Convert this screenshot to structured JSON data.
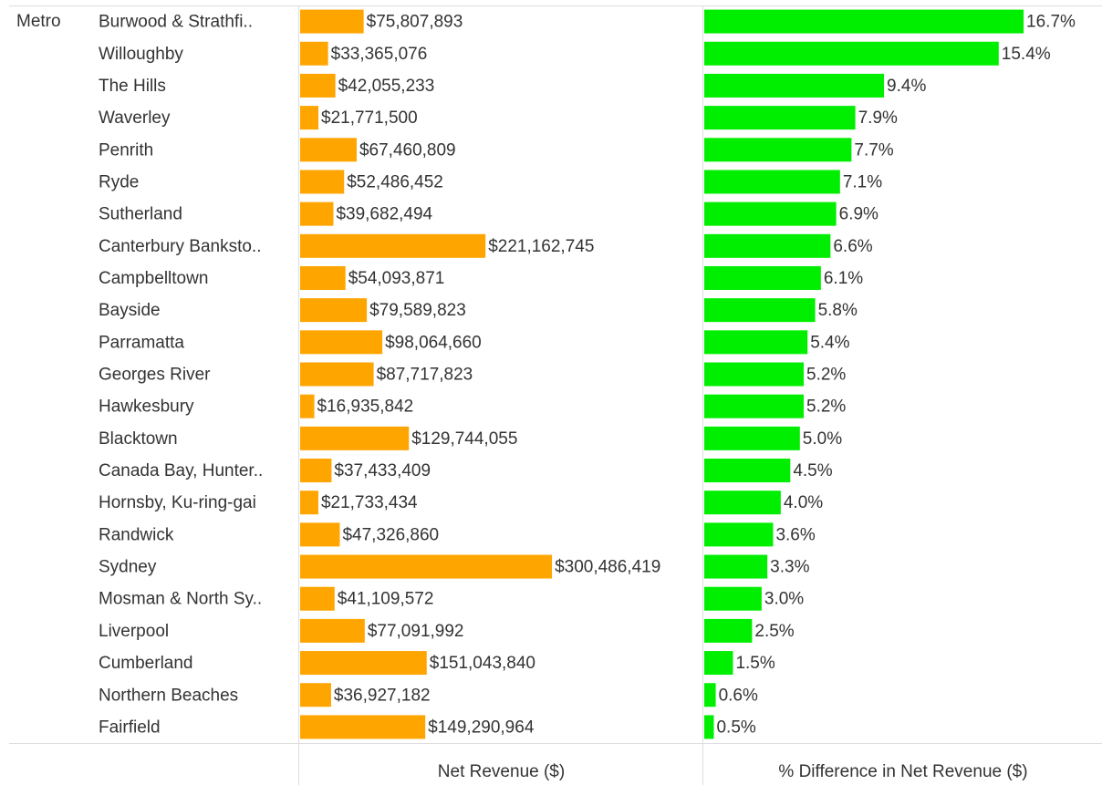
{
  "chart_data": {
    "type": "bar",
    "row_group": "Metro",
    "categories": [
      "Burwood & Strathfi..",
      "Willoughby",
      "The Hills",
      "Waverley",
      "Penrith",
      "Ryde",
      "Sutherland",
      "Canterbury Banksto..",
      "Campbelltown",
      "Bayside",
      "Parramatta",
      "Georges River",
      "Hawkesbury",
      "Blacktown",
      "Canada Bay, Hunter..",
      "Hornsby, Ku-ring-gai",
      "Randwick",
      "Sydney",
      "Mosman & North Sy..",
      "Liverpool",
      "Cumberland",
      "Northern Beaches",
      "Fairfield"
    ],
    "series": [
      {
        "name": "Net Revenue ($)",
        "color": "#ffa500",
        "xlim": [
          0,
          480000000
        ],
        "values": [
          75807893,
          33365076,
          42055233,
          21771500,
          67460809,
          52486452,
          39682494,
          221162745,
          54093871,
          79589823,
          98064660,
          87717823,
          16935842,
          129744055,
          37433409,
          21733434,
          47326860,
          300486419,
          41109572,
          77091992,
          151043840,
          36927182,
          149290964
        ],
        "value_labels": [
          "$75,807,893",
          "$33,365,076",
          "$42,055,233",
          "$21,771,500",
          "$67,460,809",
          "$52,486,452",
          "$39,682,494",
          "$221,162,745",
          "$54,093,871",
          "$79,589,823",
          "$98,064,660",
          "$87,717,823",
          "$16,935,842",
          "$129,744,055",
          "$37,433,409",
          "$21,733,434",
          "$47,326,860",
          "$300,486,419",
          "$41,109,572",
          "$77,091,992",
          "$151,043,840",
          "$36,927,182",
          "$149,290,964"
        ]
      },
      {
        "name": "% Difference in Net Revenue ($)",
        "color": "#00ee00",
        "xlim": [
          0,
          20.8
        ],
        "values": [
          16.7,
          15.4,
          9.4,
          7.9,
          7.7,
          7.1,
          6.9,
          6.6,
          6.1,
          5.8,
          5.4,
          5.2,
          5.2,
          5.0,
          4.5,
          4.0,
          3.6,
          3.3,
          3.0,
          2.5,
          1.5,
          0.6,
          0.5
        ],
        "value_labels": [
          "16.7%",
          "15.4%",
          "9.4%",
          "7.9%",
          "7.7%",
          "7.1%",
          "6.9%",
          "6.6%",
          "6.1%",
          "5.8%",
          "5.4%",
          "5.2%",
          "5.2%",
          "5.0%",
          "4.5%",
          "4.0%",
          "3.6%",
          "3.3%",
          "3.0%",
          "2.5%",
          "1.5%",
          "0.6%",
          "0.5%"
        ]
      }
    ]
  }
}
